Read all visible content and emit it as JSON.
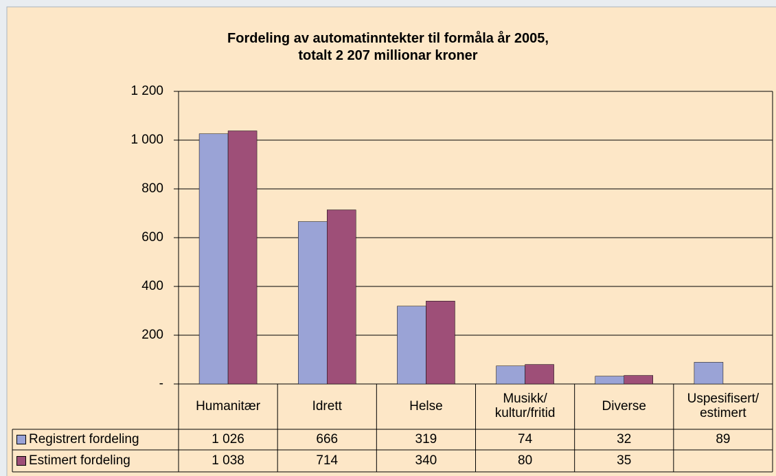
{
  "chart_data": {
    "type": "bar",
    "title": "Fordeling av automatinntekter til formåla år 2005,\ntotalt 2 207 millionar kroner",
    "categories": [
      "Humanitær",
      "Idrett",
      "Helse",
      "Musikk/\nkultur/fritid",
      "Diverse",
      "Uspesifisert/\nestimert"
    ],
    "series": [
      {
        "name": "Registrert fordeling",
        "color": "#9aa3d6",
        "values": [
          1026,
          666,
          319,
          74,
          32,
          89
        ],
        "value_labels": [
          "1 026",
          "666",
          "319",
          "74",
          "32",
          "89"
        ]
      },
      {
        "name": "Estimert fordeling",
        "color": "#9e4f78",
        "values": [
          1038,
          714,
          340,
          80,
          35,
          null
        ],
        "value_labels": [
          "1 038",
          "714",
          "340",
          "80",
          "35",
          null
        ]
      }
    ],
    "ylim": [
      0,
      1200
    ],
    "yticks": [
      {
        "value": 0,
        "label": "-"
      },
      200,
      400,
      600,
      800,
      {
        "value": 1000,
        "label": "1 000"
      },
      {
        "value": 1200,
        "label": "1 200"
      }
    ],
    "grid": true
  }
}
